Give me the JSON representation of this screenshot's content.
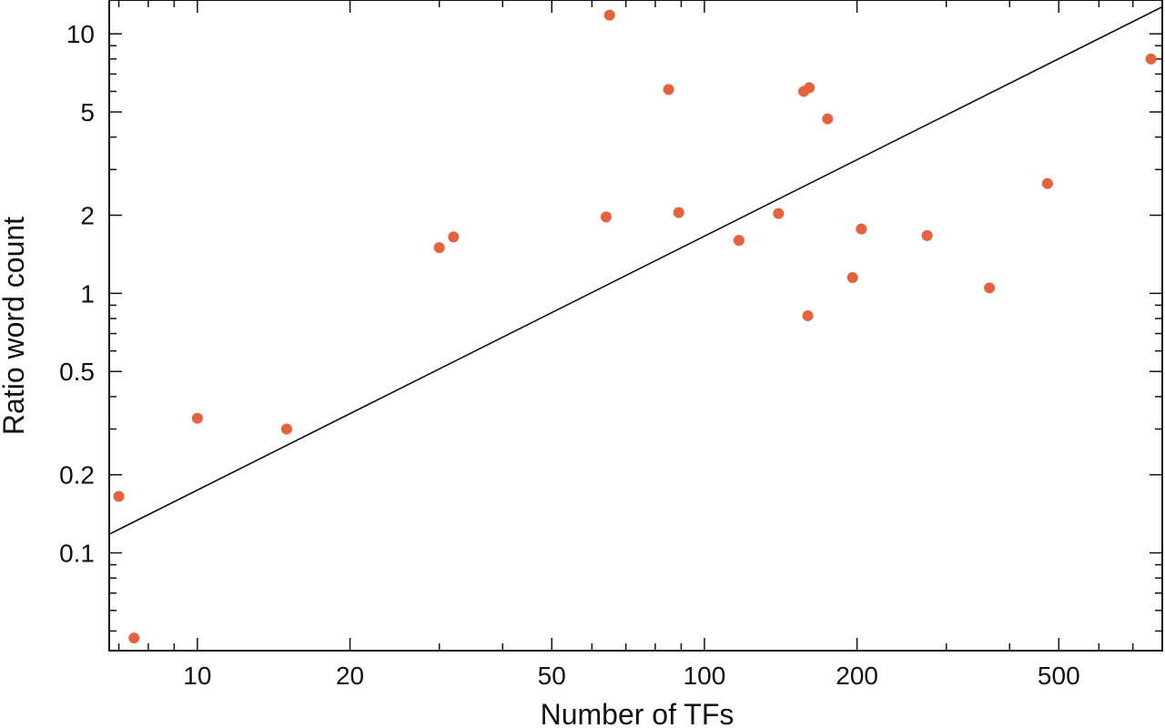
{
  "chart_data": {
    "type": "scatter",
    "title": "",
    "xlabel": "Number of TFs",
    "ylabel": "Ratio word count",
    "x_scale": "log",
    "y_scale": "log",
    "xlim": [
      6.7,
      800
    ],
    "ylim": [
      0.042,
      13.5
    ],
    "x_ticks": [
      10,
      20,
      50,
      100,
      200,
      500
    ],
    "x_tick_labels": [
      "10",
      "20",
      "50",
      "100",
      "200",
      "500"
    ],
    "y_ticks": [
      0.1,
      0.2,
      0.5,
      1,
      2,
      5,
      10
    ],
    "y_tick_labels": [
      "0.1",
      "0.2",
      "0.5",
      "1",
      "2",
      "5",
      "10"
    ],
    "grid": false,
    "legend": "none",
    "point_color": "#e8613c",
    "line_color": "#111111",
    "points": [
      {
        "x": 7,
        "y": 0.165
      },
      {
        "x": 7.5,
        "y": 0.047
      },
      {
        "x": 10,
        "y": 0.33
      },
      {
        "x": 15,
        "y": 0.3
      },
      {
        "x": 30,
        "y": 1.5
      },
      {
        "x": 32,
        "y": 1.65
      },
      {
        "x": 64,
        "y": 1.97
      },
      {
        "x": 65,
        "y": 11.8
      },
      {
        "x": 85,
        "y": 6.1
      },
      {
        "x": 89,
        "y": 2.05
      },
      {
        "x": 117,
        "y": 1.6
      },
      {
        "x": 140,
        "y": 2.03
      },
      {
        "x": 157,
        "y": 6.0
      },
      {
        "x": 160,
        "y": 0.82
      },
      {
        "x": 161,
        "y": 6.2
      },
      {
        "x": 175,
        "y": 4.7
      },
      {
        "x": 196,
        "y": 1.15
      },
      {
        "x": 204,
        "y": 1.77
      },
      {
        "x": 275,
        "y": 1.67
      },
      {
        "x": 365,
        "y": 1.05
      },
      {
        "x": 475,
        "y": 2.65
      },
      {
        "x": 760,
        "y": 8.0
      }
    ],
    "fit_line": [
      {
        "x": 6.7,
        "y": 0.118
      },
      {
        "x": 800,
        "y": 12.7
      }
    ]
  }
}
